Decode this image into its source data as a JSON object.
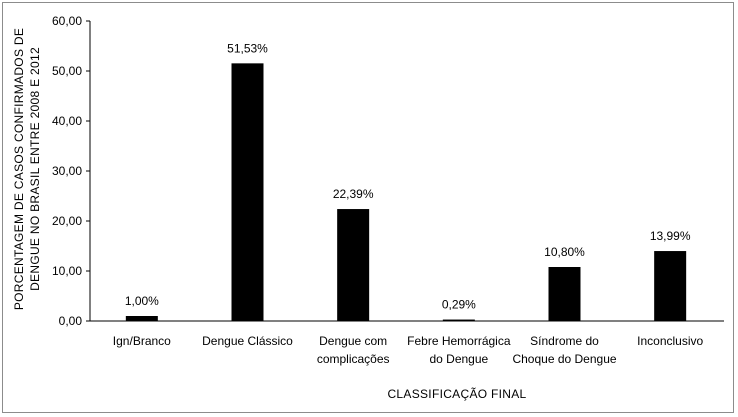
{
  "chart_data": {
    "type": "bar",
    "categories": [
      [
        "Ign/Branco"
      ],
      [
        "Dengue Clássico"
      ],
      [
        "Dengue com",
        "complicações"
      ],
      [
        "Febre Hemorrágica",
        "do Dengue"
      ],
      [
        "Síndrome do",
        "Choque do Dengue"
      ],
      [
        "Inconclusivo"
      ]
    ],
    "values": [
      1.0,
      51.53,
      22.39,
      0.29,
      10.8,
      13.99
    ],
    "data_labels": [
      "1,00%",
      "51,53%",
      "22,39%",
      "0,29%",
      "10,80%",
      "13,99%"
    ],
    "yticks": [
      "0,00",
      "10,00",
      "20,00",
      "30,00",
      "40,00",
      "50,00",
      "60,00"
    ],
    "ylim": [
      0,
      60
    ],
    "xlabel": "CLASSIFICAÇÃO  FINAL",
    "ylabel_lines": [
      "PORCENTAGEM DE CASOS CONFIRMADOS DE",
      "DENGUE NO BRASIL ENTRE 2008 E 2012"
    ],
    "bar_color": "#000000",
    "grid": false,
    "legend": "none"
  }
}
